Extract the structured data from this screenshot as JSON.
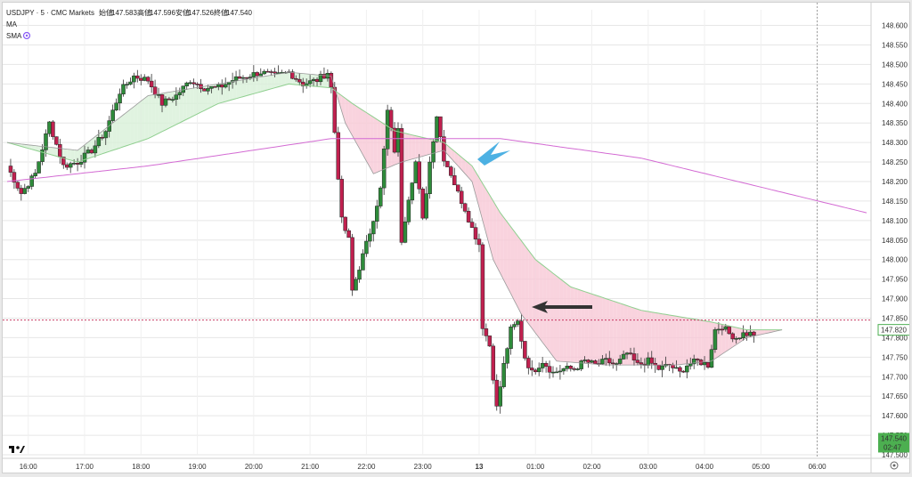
{
  "header": {
    "symbol": "USDJPY · 5 · CMC Markets",
    "open_label": "始値",
    "open": "147.583",
    "high_label": "高値",
    "high": "147.596",
    "low_label": "安値",
    "low": "147.526",
    "close_label": "終値",
    "close": "147.540"
  },
  "indicators": [
    "MA",
    "SMA"
  ],
  "badges": {
    "price_green": "147.820",
    "price_current": "147.540",
    "countdown": "02:47"
  },
  "colors": {
    "up": "#2e8b3a",
    "down": "#c0204f",
    "ma_long": "#d36bd3",
    "ribbon_green": "#8fcf8f",
    "ribbon_pink_fill": "#f7c8d6",
    "ribbon_green_fill": "#d8f0d8",
    "grid": "#e6e6e6",
    "badge_green": "#4caf50",
    "arrow_blue": "#3aa8e0",
    "arrow_black": "#333333"
  },
  "chart_data": {
    "type": "candlestick",
    "ylim": [
      147.5,
      148.64
    ],
    "xlim_index": [
      0,
      244
    ],
    "y_ticks": [
      "148.600",
      "148.550",
      "148.500",
      "148.450",
      "148.400",
      "148.350",
      "148.300",
      "148.250",
      "148.200",
      "148.150",
      "148.100",
      "148.050",
      "148.000",
      "147.950",
      "147.900",
      "147.850",
      "147.800",
      "147.750",
      "147.700",
      "147.650",
      "147.600",
      "147.550",
      "147.500"
    ],
    "x_ticks": [
      {
        "label": "16:00",
        "i": 6
      },
      {
        "label": "17:00",
        "i": 22
      },
      {
        "label": "18:00",
        "i": 38
      },
      {
        "label": "19:00",
        "i": 54
      },
      {
        "label": "20:00",
        "i": 70
      },
      {
        "label": "21:00",
        "i": 86
      },
      {
        "label": "22:00",
        "i": 102
      },
      {
        "label": "23:00",
        "i": 118
      },
      {
        "label": "13",
        "i": 134
      },
      {
        "label": "01:00",
        "i": 150
      },
      {
        "label": "02:00",
        "i": 166
      },
      {
        "label": "03:00",
        "i": 182
      },
      {
        "label": "04:00",
        "i": 198
      },
      {
        "label": "05:00",
        "i": 214
      },
      {
        "label": "06:00",
        "i": 230
      }
    ],
    "anchor_closes": [
      [
        0,
        148.24
      ],
      [
        4,
        148.17
      ],
      [
        8,
        148.22
      ],
      [
        12,
        148.35
      ],
      [
        16,
        148.24
      ],
      [
        20,
        148.25
      ],
      [
        24,
        148.28
      ],
      [
        28,
        148.33
      ],
      [
        32,
        148.43
      ],
      [
        36,
        148.47
      ],
      [
        40,
        148.46
      ],
      [
        44,
        148.4
      ],
      [
        48,
        148.42
      ],
      [
        52,
        148.46
      ],
      [
        56,
        148.44
      ],
      [
        60,
        148.44
      ],
      [
        64,
        148.46
      ],
      [
        68,
        148.47
      ],
      [
        72,
        148.48
      ],
      [
        76,
        148.47
      ],
      [
        80,
        148.48
      ],
      [
        84,
        148.45
      ],
      [
        88,
        148.46
      ],
      [
        91,
        148.48
      ],
      [
        92,
        148.44
      ],
      [
        95,
        148.1
      ],
      [
        97,
        148.05
      ],
      [
        98,
        147.92
      ],
      [
        100,
        147.98
      ],
      [
        103,
        148.07
      ],
      [
        106,
        148.18
      ],
      [
        108,
        148.38
      ],
      [
        110,
        148.28
      ],
      [
        111,
        148.33
      ],
      [
        112,
        148.05
      ],
      [
        114,
        148.16
      ],
      [
        116,
        148.25
      ],
      [
        118,
        148.1
      ],
      [
        120,
        148.25
      ],
      [
        122,
        148.37
      ],
      [
        124,
        148.26
      ],
      [
        126,
        148.22
      ],
      [
        128,
        148.17
      ],
      [
        130,
        148.13
      ],
      [
        132,
        148.08
      ],
      [
        134,
        148.04
      ],
      [
        135,
        147.83
      ],
      [
        137,
        147.78
      ],
      [
        139,
        147.62
      ],
      [
        141,
        147.73
      ],
      [
        143,
        147.82
      ],
      [
        145,
        147.84
      ],
      [
        147,
        147.75
      ],
      [
        149,
        147.71
      ],
      [
        152,
        147.74
      ],
      [
        155,
        147.71
      ],
      [
        158,
        147.72
      ],
      [
        161,
        147.72
      ],
      [
        164,
        147.74
      ],
      [
        167,
        147.73
      ],
      [
        170,
        147.74
      ],
      [
        173,
        147.73
      ],
      [
        176,
        147.76
      ],
      [
        179,
        147.73
      ],
      [
        182,
        147.74
      ],
      [
        185,
        147.72
      ],
      [
        188,
        147.73
      ],
      [
        191,
        147.71
      ],
      [
        193,
        147.73
      ],
      [
        196,
        147.74
      ],
      [
        199,
        147.73
      ],
      [
        201,
        147.82
      ],
      [
        203,
        147.83
      ],
      [
        205,
        147.81
      ],
      [
        207,
        147.8
      ],
      [
        209,
        147.81
      ]
    ],
    "ma_long_anchors": [
      [
        0,
        148.2
      ],
      [
        40,
        148.24
      ],
      [
        92,
        148.31
      ],
      [
        140,
        148.31
      ],
      [
        180,
        148.26
      ],
      [
        212,
        148.19
      ],
      [
        244,
        148.12
      ]
    ],
    "ribbon_fast_anchors": [
      [
        0,
        148.3
      ],
      [
        20,
        148.28
      ],
      [
        40,
        148.42
      ],
      [
        60,
        148.45
      ],
      [
        80,
        148.48
      ],
      [
        92,
        148.47
      ],
      [
        96,
        148.35
      ],
      [
        104,
        148.22
      ],
      [
        112,
        148.25
      ],
      [
        124,
        148.28
      ],
      [
        132,
        148.2
      ],
      [
        138,
        148.0
      ],
      [
        146,
        147.86
      ],
      [
        156,
        147.74
      ],
      [
        170,
        147.73
      ],
      [
        190,
        147.73
      ],
      [
        200,
        147.74
      ],
      [
        210,
        147.8
      ],
      [
        220,
        147.82
      ]
    ],
    "ribbon_slow_anchors": [
      [
        0,
        148.3
      ],
      [
        20,
        148.25
      ],
      [
        40,
        148.31
      ],
      [
        60,
        148.4
      ],
      [
        80,
        148.45
      ],
      [
        92,
        148.44
      ],
      [
        98,
        148.4
      ],
      [
        110,
        148.33
      ],
      [
        124,
        148.3
      ],
      [
        132,
        148.24
      ],
      [
        140,
        148.12
      ],
      [
        150,
        148.0
      ],
      [
        160,
        147.93
      ],
      [
        180,
        147.87
      ],
      [
        200,
        147.84
      ],
      [
        210,
        147.82
      ],
      [
        220,
        147.82
      ]
    ],
    "price_line_level": 147.845,
    "current_price_level": 147.54
  }
}
